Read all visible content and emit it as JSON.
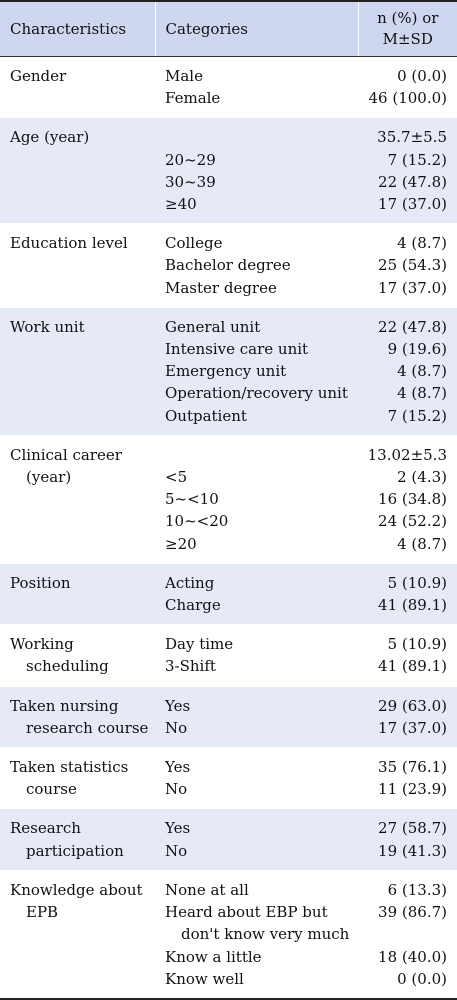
{
  "header": {
    "col1": "Characteristics",
    "col2": "Categories",
    "col3_line1": "n (%) or",
    "col3_line2": "M±SD"
  },
  "rows": [
    {
      "label": [
        "Gender"
      ],
      "categories": [
        "Male",
        "Female"
      ],
      "values": [
        "0 (0.0)",
        "46 (100.0)"
      ]
    },
    {
      "label": [
        "Age (year)"
      ],
      "categories": [
        "",
        "20~29",
        "30~39",
        "≥40"
      ],
      "values": [
        "35.7±5.5",
        "7 (15.2)",
        "22 (47.8)",
        "17 (37.0)"
      ]
    },
    {
      "label": [
        "Education level"
      ],
      "categories": [
        "College",
        "Bachelor degree",
        "Master degree"
      ],
      "values": [
        "4 (8.7)",
        "25 (54.3)",
        "17 (37.0)"
      ]
    },
    {
      "label": [
        "Work unit"
      ],
      "categories": [
        "General unit",
        "Intensive care unit",
        "Emergency unit",
        "Operation/recovery unit",
        "Outpatient"
      ],
      "values": [
        "22 (47.8)",
        "9 (19.6)",
        "4 (8.7)",
        "4 (8.7)",
        "7 (15.2)"
      ]
    },
    {
      "label": [
        "Clinical career",
        "(year)"
      ],
      "categories": [
        "",
        "<5",
        "5~<10",
        "10~<20",
        "≥20"
      ],
      "values": [
        "13.02±5.3",
        "2 (4.3)",
        "16 (34.8)",
        "24 (52.2)",
        "4 (8.7)"
      ]
    },
    {
      "label": [
        "Position"
      ],
      "categories": [
        "Acting",
        "Charge"
      ],
      "values": [
        "5 (10.9)",
        "41 (89.1)"
      ]
    },
    {
      "label": [
        "Working",
        "scheduling"
      ],
      "categories": [
        "Day time",
        "3-Shift"
      ],
      "values": [
        "5 (10.9)",
        "41 (89.1)"
      ]
    },
    {
      "label": [
        "Taken nursing",
        "research course"
      ],
      "categories": [
        "Yes",
        "No"
      ],
      "values": [
        "29 (63.0)",
        "17 (37.0)"
      ]
    },
    {
      "label": [
        "Taken statistics",
        "course"
      ],
      "categories": [
        "Yes",
        "No"
      ],
      "values": [
        "35 (76.1)",
        "11 (23.9)"
      ]
    },
    {
      "label": [
        "Research",
        "participation"
      ],
      "categories": [
        "Yes",
        "No"
      ],
      "values": [
        "27 (58.7)",
        "19 (41.3)"
      ]
    },
    {
      "label": [
        "Knowledge about",
        "EPB"
      ],
      "categories": [
        "None at all",
        "Heard about EBP but",
        "don't know very much",
        "Know a little",
        "Know well"
      ],
      "values": [
        "6 (13.3)",
        "39 (86.7)",
        "",
        "18 (40.0)",
        "0 (0.0)"
      ]
    }
  ]
}
